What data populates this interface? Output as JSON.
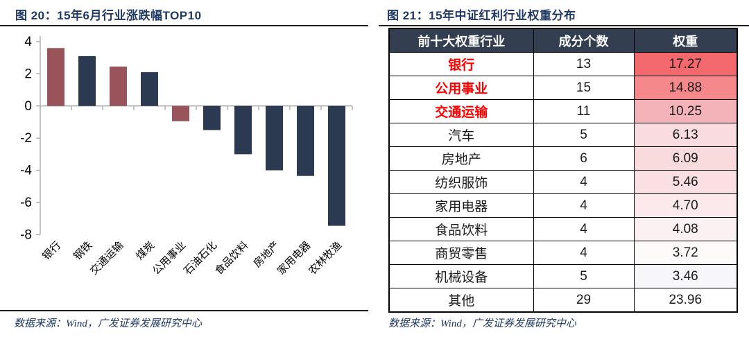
{
  "left_panel": {
    "title": "图 20：15年6月行业涨跌幅TOP10",
    "source": "数据来源：Wind，广发证券发展研究中心"
  },
  "right_panel": {
    "title": "图 21：15年中证红利行业权重分布",
    "source": "数据来源：Wind，广发证券发展研究中心"
  },
  "chart_data": [
    {
      "type": "bar",
      "title": "15年6月行业涨跌幅TOP10",
      "categories": [
        "银行",
        "钢铁",
        "交通运输",
        "煤炭",
        "公用事业",
        "石油石化",
        "食品饮料",
        "房地产",
        "家用电器",
        "农林牧渔"
      ],
      "values": [
        3.6,
        3.1,
        2.45,
        2.1,
        -0.95,
        -1.5,
        -3.0,
        -4.0,
        -4.35,
        -7.45
      ],
      "bar_colors": [
        "#98545a",
        "#2b3a50",
        "#98545a",
        "#2b3a50",
        "#98545a",
        "#2b3a50",
        "#2b3a50",
        "#2b3a50",
        "#2b3a50",
        "#2b3a50"
      ],
      "xlabel": "",
      "ylabel": "",
      "ylim": [
        -8,
        4
      ],
      "yticks": [
        4,
        2,
        0,
        -2,
        -4,
        -6,
        -8
      ],
      "grid": false,
      "legend": false,
      "axis_color": "#b0b0b0",
      "tick_label_color": "#000000"
    },
    {
      "type": "table",
      "title": "15年中证红利行业权重分布",
      "columns": [
        "前十大权重行业",
        "成分个数",
        "权重"
      ],
      "rows": [
        [
          "银行",
          "13",
          "17.27"
        ],
        [
          "公用事业",
          "15",
          "14.88"
        ],
        [
          "交通运输",
          "11",
          "10.25"
        ],
        [
          "汽车",
          "5",
          "6.13"
        ],
        [
          "房地产",
          "6",
          "6.09"
        ],
        [
          "纺织服饰",
          "4",
          "5.46"
        ],
        [
          "家用电器",
          "4",
          "4.70"
        ],
        [
          "食品饮料",
          "4",
          "4.08"
        ],
        [
          "商贸零售",
          "4",
          "3.72"
        ],
        [
          "机械设备",
          "5",
          "3.46"
        ],
        [
          "其他",
          "29",
          "23.96"
        ]
      ],
      "red_rows": [
        0,
        1,
        2
      ],
      "weight_cell_colors": [
        "#f4696d",
        "#f5888b",
        "#f3b3b8",
        "#f9dce0",
        "#f9dadd",
        "#fadfe3",
        "#fbe9ec",
        "#fcf1f2",
        "#fefafa",
        "#f7f7fb",
        "#ffffff"
      ],
      "header_bg": "#333f50",
      "header_text_color": "#ffffff",
      "red_text_color": "#ff0000"
    }
  ]
}
